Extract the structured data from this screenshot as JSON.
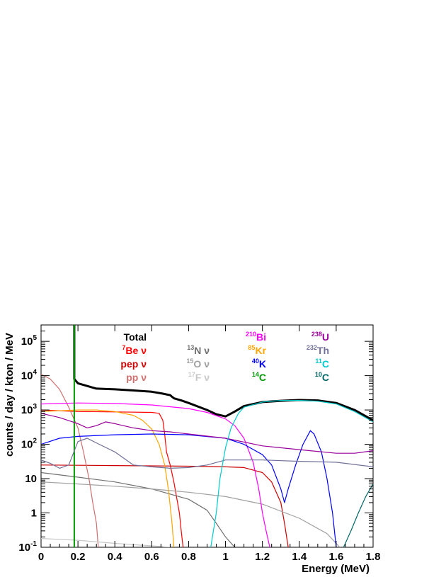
{
  "chart_data": {
    "type": "line",
    "title": "",
    "xlabel": "Energy (MeV)",
    "ylabel": "counts / day / kton / MeV",
    "xlim": [
      0,
      1.8
    ],
    "ylim": [
      0.1,
      300000
    ],
    "y_scale": "log",
    "x_ticks": [
      0,
      0.2,
      0.4,
      0.6,
      0.8,
      1,
      1.2,
      1.4,
      1.6,
      1.8
    ],
    "x_tick_labels": [
      "0",
      "0.2",
      "0.4",
      "0.6",
      "0.8",
      "1",
      "1.2",
      "1.4",
      "1.6",
      "1.8"
    ],
    "y_ticks": [
      0.1,
      1,
      10,
      100,
      1000,
      10000,
      100000
    ],
    "y_tick_labels": [
      {
        "base": "10",
        "exp": "-1"
      },
      {
        "base": "1",
        "exp": ""
      },
      {
        "base": "10",
        "exp": ""
      },
      {
        "base": "10",
        "exp": "2"
      },
      {
        "base": "10",
        "exp": "3"
      },
      {
        "base": "10",
        "exp": "4"
      },
      {
        "base": "10",
        "exp": "5"
      }
    ],
    "grid": false,
    "legend_position": "top, inside plot (3 columns)",
    "series": [
      {
        "name": "Total",
        "color": "#000000",
        "sup": "",
        "suffix": "",
        "stroke": 3,
        "points": [
          [
            0.18,
            300000
          ],
          [
            0.18,
            8000
          ],
          [
            0.2,
            6000
          ],
          [
            0.3,
            4200
          ],
          [
            0.4,
            4000
          ],
          [
            0.5,
            3700
          ],
          [
            0.6,
            3400
          ],
          [
            0.66,
            3000
          ],
          [
            0.7,
            2700
          ],
          [
            0.72,
            2200
          ],
          [
            0.76,
            1900
          ],
          [
            0.8,
            1600
          ],
          [
            0.9,
            1000
          ],
          [
            0.95,
            750
          ],
          [
            1.0,
            650
          ],
          [
            1.05,
            900
          ],
          [
            1.1,
            1300
          ],
          [
            1.2,
            1700
          ],
          [
            1.3,
            1850
          ],
          [
            1.4,
            1950
          ],
          [
            1.5,
            1900
          ],
          [
            1.6,
            1600
          ],
          [
            1.7,
            1000
          ],
          [
            1.8,
            500
          ]
        ]
      },
      {
        "name": "Be ν",
        "color": "#ff0000",
        "sup": "7",
        "suffix": "",
        "stroke": 1.2,
        "points": [
          [
            0,
            1000
          ],
          [
            0.2,
            900
          ],
          [
            0.4,
            880
          ],
          [
            0.6,
            850
          ],
          [
            0.64,
            800
          ],
          [
            0.66,
            500
          ],
          [
            0.67,
            200
          ],
          [
            0.68,
            60
          ],
          [
            0.7,
            25
          ],
          [
            0.72,
            8
          ],
          [
            0.74,
            2
          ],
          [
            0.75,
            1
          ],
          [
            0.76,
            0.3
          ],
          [
            0.77,
            0.1
          ]
        ]
      },
      {
        "name": "pep ν",
        "color": "#cc0000",
        "sup": "",
        "suffix": "",
        "stroke": 1.2,
        "points": [
          [
            0,
            25
          ],
          [
            0.4,
            24
          ],
          [
            0.8,
            23
          ],
          [
            1.0,
            22
          ],
          [
            1.1,
            21
          ],
          [
            1.2,
            15
          ],
          [
            1.25,
            8
          ],
          [
            1.3,
            2
          ],
          [
            1.32,
            0.5
          ],
          [
            1.34,
            0.1
          ]
        ]
      },
      {
        "name": "pp ν",
        "color": "#d07070",
        "sup": "",
        "suffix": "",
        "stroke": 1.2,
        "points": [
          [
            0,
            11000
          ],
          [
            0.05,
            8000
          ],
          [
            0.1,
            4000
          ],
          [
            0.15,
            1200
          ],
          [
            0.2,
            300
          ],
          [
            0.23,
            60
          ],
          [
            0.26,
            10
          ],
          [
            0.28,
            2
          ],
          [
            0.3,
            0.5
          ],
          [
            0.31,
            0.1
          ]
        ]
      },
      {
        "name": "N ν",
        "color": "#707070",
        "sup": "13",
        "suffix": "",
        "stroke": 1.2,
        "points": [
          [
            0,
            15
          ],
          [
            0.2,
            11
          ],
          [
            0.4,
            8
          ],
          [
            0.6,
            5
          ],
          [
            0.8,
            2.5
          ],
          [
            0.9,
            1.2
          ],
          [
            0.95,
            0.5
          ],
          [
            1.0,
            0.2
          ],
          [
            1.05,
            0.1
          ]
        ]
      },
      {
        "name": "O ν",
        "color": "#a0a0a0",
        "sup": "15",
        "suffix": "",
        "stroke": 1.2,
        "points": [
          [
            0,
            8
          ],
          [
            0.2,
            7
          ],
          [
            0.4,
            6
          ],
          [
            0.6,
            5
          ],
          [
            0.8,
            4
          ],
          [
            1.0,
            3
          ],
          [
            1.2,
            1.8
          ],
          [
            1.4,
            0.7
          ],
          [
            1.55,
            0.25
          ],
          [
            1.62,
            0.1
          ]
        ]
      },
      {
        "name": "F ν",
        "color": "#c8c8c8",
        "sup": "17",
        "suffix": "",
        "stroke": 1.2,
        "points": [
          [
            0,
            0.18
          ],
          [
            0.2,
            0.16
          ],
          [
            0.4,
            0.13
          ],
          [
            0.6,
            0.11
          ],
          [
            0.7,
            0.1
          ]
        ]
      },
      {
        "name": "Bi",
        "color": "#ff00ff",
        "sup": "210",
        "suffix": "",
        "stroke": 1.2,
        "points": [
          [
            0,
            1500
          ],
          [
            0.2,
            1600
          ],
          [
            0.4,
            1550
          ],
          [
            0.6,
            1400
          ],
          [
            0.8,
            1100
          ],
          [
            0.9,
            850
          ],
          [
            1.0,
            550
          ],
          [
            1.05,
            350
          ],
          [
            1.1,
            150
          ],
          [
            1.15,
            30
          ],
          [
            1.18,
            5
          ],
          [
            1.2,
            1
          ],
          [
            1.22,
            0.3
          ],
          [
            1.24,
            0.1
          ]
        ]
      },
      {
        "name": "Kr",
        "color": "#ffa500",
        "sup": "85",
        "suffix": "",
        "stroke": 1.2,
        "points": [
          [
            0,
            900
          ],
          [
            0.2,
            1000
          ],
          [
            0.3,
            1000
          ],
          [
            0.4,
            900
          ],
          [
            0.5,
            700
          ],
          [
            0.55,
            500
          ],
          [
            0.6,
            280
          ],
          [
            0.64,
            100
          ],
          [
            0.67,
            25
          ],
          [
            0.69,
            5
          ],
          [
            0.71,
            0.5
          ],
          [
            0.72,
            0.1
          ]
        ]
      },
      {
        "name": "K",
        "color": "#0000ff",
        "sup": "40",
        "suffix": "",
        "stroke": 1.2,
        "points": [
          [
            0,
            100
          ],
          [
            0.1,
            150
          ],
          [
            0.2,
            170
          ],
          [
            0.4,
            190
          ],
          [
            0.6,
            200
          ],
          [
            0.8,
            190
          ],
          [
            1.0,
            150
          ],
          [
            1.1,
            100
          ],
          [
            1.2,
            50
          ],
          [
            1.25,
            25
          ],
          [
            1.3,
            5
          ],
          [
            1.32,
            2
          ],
          [
            1.34,
            5
          ],
          [
            1.38,
            25
          ],
          [
            1.42,
            100
          ],
          [
            1.46,
            250
          ],
          [
            1.48,
            200
          ],
          [
            1.52,
            60
          ],
          [
            1.55,
            10
          ],
          [
            1.58,
            1
          ],
          [
            1.6,
            0.1
          ]
        ]
      },
      {
        "name": "C",
        "color": "#009900",
        "sup": "14",
        "suffix": "",
        "stroke": 2,
        "points": [
          [
            0.18,
            300000
          ],
          [
            0.18,
            0.1
          ]
        ]
      },
      {
        "name": "U",
        "color": "#990099",
        "sup": "238",
        "suffix": "",
        "stroke": 1.2,
        "points": [
          [
            0,
            800
          ],
          [
            0.1,
            600
          ],
          [
            0.2,
            400
          ],
          [
            0.25,
            300
          ],
          [
            0.3,
            350
          ],
          [
            0.35,
            450
          ],
          [
            0.4,
            400
          ],
          [
            0.5,
            300
          ],
          [
            0.6,
            250
          ],
          [
            0.7,
            230
          ],
          [
            0.8,
            200
          ],
          [
            1.0,
            150
          ],
          [
            1.2,
            90
          ],
          [
            1.4,
            70
          ],
          [
            1.6,
            55
          ],
          [
            1.7,
            55
          ],
          [
            1.8,
            65
          ]
        ]
      },
      {
        "name": "Th",
        "color": "#707099",
        "sup": "232",
        "suffix": "",
        "stroke": 1.2,
        "points": [
          [
            0,
            35
          ],
          [
            0.05,
            28
          ],
          [
            0.1,
            20
          ],
          [
            0.15,
            25
          ],
          [
            0.2,
            120
          ],
          [
            0.25,
            150
          ],
          [
            0.3,
            110
          ],
          [
            0.4,
            60
          ],
          [
            0.5,
            25
          ],
          [
            0.6,
            22
          ],
          [
            0.7,
            20
          ],
          [
            0.8,
            21
          ],
          [
            0.9,
            25
          ],
          [
            1.0,
            35
          ],
          [
            1.2,
            35
          ],
          [
            1.4,
            32
          ],
          [
            1.6,
            30
          ],
          [
            1.8,
            22
          ]
        ]
      },
      {
        "name": "C",
        "color": "#00cccc",
        "sup": "11",
        "suffix": "",
        "stroke": 1.2,
        "points": [
          [
            0.92,
            0.1
          ],
          [
            0.95,
            1
          ],
          [
            0.97,
            10
          ],
          [
            1.0,
            80
          ],
          [
            1.03,
            300
          ],
          [
            1.07,
            800
          ],
          [
            1.1,
            1200
          ],
          [
            1.2,
            1700
          ],
          [
            1.3,
            1900
          ],
          [
            1.4,
            1900
          ],
          [
            1.5,
            1800
          ],
          [
            1.6,
            1500
          ],
          [
            1.7,
            900
          ],
          [
            1.8,
            450
          ]
        ]
      },
      {
        "name": "C",
        "color": "#006666",
        "sup": "10",
        "suffix": "",
        "stroke": 1.2,
        "points": [
          [
            1.64,
            0.1
          ],
          [
            1.68,
            0.3
          ],
          [
            1.72,
            1
          ],
          [
            1.76,
            3
          ],
          [
            1.8,
            7
          ]
        ]
      }
    ]
  }
}
